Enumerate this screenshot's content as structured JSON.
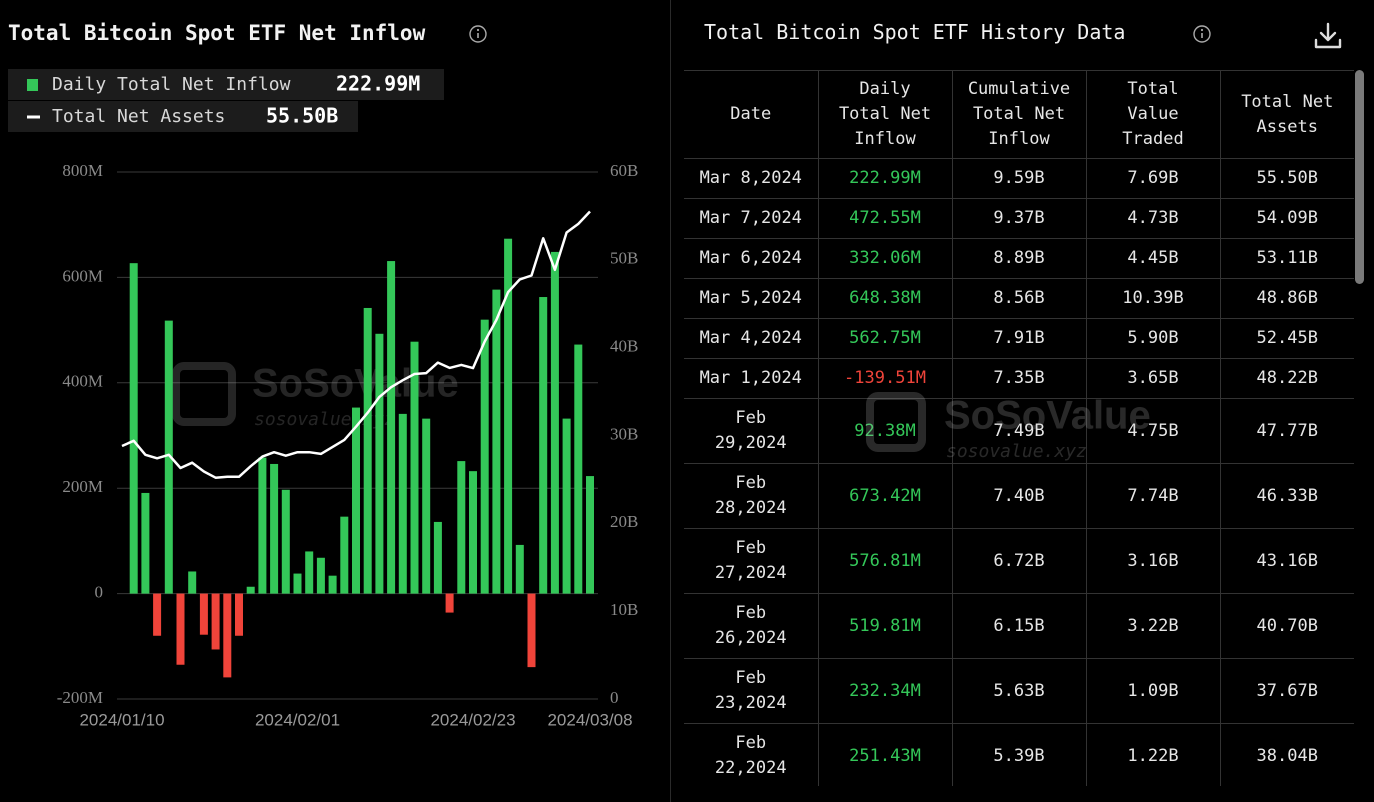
{
  "chart_data": {
    "type": "bar_line",
    "title": "Total Bitcoin Spot ETF Net Inflow",
    "categories": [
      "2024/01/10",
      null,
      null,
      null,
      null,
      null,
      null,
      null,
      null,
      null,
      null,
      null,
      null,
      null,
      null,
      "2024/02/01",
      null,
      null,
      null,
      null,
      null,
      null,
      null,
      null,
      null,
      null,
      null,
      null,
      null,
      null,
      "2024/02/23",
      null,
      null,
      null,
      null,
      null,
      null,
      null,
      null,
      null,
      "2024/03/08"
    ],
    "series": [
      {
        "name": "Daily Total Net Inflow",
        "legend_value": "222.99M",
        "color": "#34c759",
        "negative_color": "#f0443a",
        "axis": "y",
        "values": [
          null,
          627,
          191,
          -80,
          518,
          -135,
          42,
          -78,
          -106,
          -159,
          -80,
          13,
          258,
          246,
          197,
          38,
          80,
          68,
          34,
          146,
          353,
          542,
          493,
          631,
          341,
          478,
          332,
          136,
          -36,
          251.43,
          232.34,
          519.81,
          576.81,
          673.42,
          92.38,
          -139.51,
          562.75,
          648.38,
          332.06,
          472.55,
          222.99
        ]
      },
      {
        "name": "Total Net Assets",
        "legend_value": "55.50B",
        "color": "#ffffff",
        "axis": "y2",
        "values": [
          28.8,
          29.4,
          27.8,
          27.4,
          27.8,
          26.3,
          26.9,
          25.9,
          25.2,
          25.3,
          25.3,
          26.5,
          27.6,
          28.1,
          27.7,
          28.1,
          28.1,
          27.9,
          28.7,
          29.5,
          31.0,
          32.6,
          34.4,
          35.5,
          36.3,
          37.0,
          37.1,
          38.3,
          37.7,
          38.04,
          37.67,
          40.7,
          43.16,
          46.33,
          47.77,
          48.22,
          52.45,
          48.86,
          53.11,
          54.09,
          55.5
        ]
      }
    ],
    "ylim": [
      -200,
      800
    ],
    "yticks": [
      {
        "value": -200,
        "label": "-200M"
      },
      0,
      {
        "value": 200,
        "label": "200M"
      },
      {
        "value": 400,
        "label": "400M"
      },
      {
        "value": 600,
        "label": "600M"
      },
      {
        "value": 800,
        "label": "800M"
      }
    ],
    "y2lim": [
      0,
      60
    ],
    "y2ticks": [
      0,
      {
        "value": 10,
        "label": "10B"
      },
      {
        "value": 20,
        "label": "20B"
      },
      {
        "value": 30,
        "label": "30B"
      },
      {
        "value": 40,
        "label": "40B"
      },
      {
        "value": 50,
        "label": "50B"
      },
      {
        "value": 60,
        "label": "60B"
      }
    ],
    "grid": true
  },
  "watermark": {
    "name": "SoSoValue",
    "url": "sosovalue.xyz"
  },
  "table": {
    "title": "Total Bitcoin Spot ETF History Data",
    "headers": [
      "Date",
      "Daily Total Net Inflow",
      "Cumulative Total Net Inflow",
      "Total Value Traded",
      "Total Net Assets"
    ],
    "rows": [
      [
        "Mar 8,2024",
        "222.99M",
        "9.59B",
        "7.69B",
        "55.50B"
      ],
      [
        "Mar 7,2024",
        "472.55M",
        "9.37B",
        "4.73B",
        "54.09B"
      ],
      [
        "Mar 6,2024",
        "332.06M",
        "8.89B",
        "4.45B",
        "53.11B"
      ],
      [
        "Mar 5,2024",
        "648.38M",
        "8.56B",
        "10.39B",
        "48.86B"
      ],
      [
        "Mar 4,2024",
        "562.75M",
        "7.91B",
        "5.90B",
        "52.45B"
      ],
      [
        "Mar 1,2024",
        "-139.51M",
        "7.35B",
        "3.65B",
        "48.22B"
      ],
      [
        "Feb 29,2024",
        "92.38M",
        "7.49B",
        "4.75B",
        "47.77B"
      ],
      [
        "Feb 28,2024",
        "673.42M",
        "7.40B",
        "7.74B",
        "46.33B"
      ],
      [
        "Feb 27,2024",
        "576.81M",
        "6.72B",
        "3.16B",
        "43.16B"
      ],
      [
        "Feb 26,2024",
        "519.81M",
        "6.15B",
        "3.22B",
        "40.70B"
      ],
      [
        "Feb 23,2024",
        "232.34M",
        "5.63B",
        "1.09B",
        "37.67B"
      ],
      [
        "Feb 22,2024",
        "251.43M",
        "5.39B",
        "1.22B",
        "38.04B"
      ]
    ]
  }
}
